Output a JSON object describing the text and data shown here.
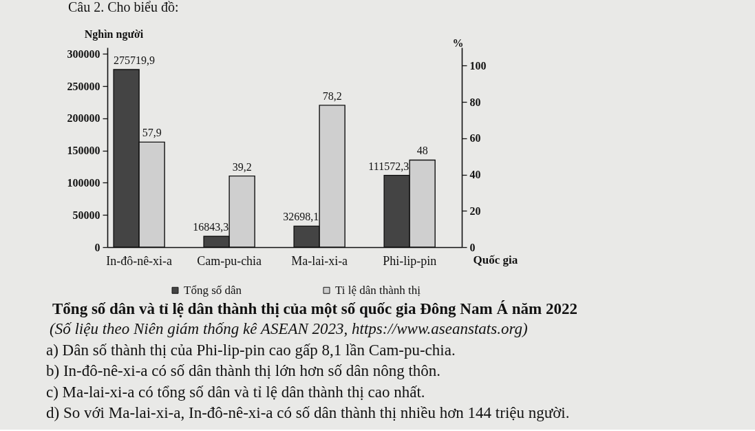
{
  "chart_data": {
    "type": "bar",
    "title": "Tổng số dân và tỉ lệ dân thành thị của một số quốc gia Đông Nam Á năm 2022",
    "xlabel": "Quốc gia",
    "ylabel": "Nghìn người",
    "y2label": "%",
    "categories": [
      "In-đô-nê-xi-a",
      "Cam-pu-chia",
      "Ma-lai-xi-a",
      "Phi-lip-pin"
    ],
    "series": [
      {
        "name": "Tổng số dân",
        "color": "#444444",
        "values": [
          275719.9,
          16843.3,
          32698.1,
          111572.3
        ],
        "value_labels": [
          "275719,9",
          "16843,3",
          "32698,1",
          "111572,3"
        ]
      },
      {
        "name": "Ti lệ dân thành thị",
        "color": "#cfcfcf",
        "axis": "y2",
        "values": [
          57.9,
          39.2,
          78.2,
          48
        ],
        "value_labels": [
          "57,9",
          "39,2",
          "78,2",
          "48"
        ]
      }
    ],
    "ylim": [
      0,
      310000
    ],
    "yticks": [
      0,
      50000,
      100000,
      150000,
      200000,
      250000,
      300000
    ],
    "y2lim": [
      0,
      110
    ],
    "y2ticks": [
      0,
      20,
      40,
      60,
      80,
      100
    ],
    "legend": "bottom",
    "annotations": [
      "Câu 2. Cho biểu đồ:",
      "(Số liệu theo Niên giám thống kê ASEAN 2023, https://www.aseanstats.org)",
      "a) Dân số thành thị của Phi-lip-pin cao gấp 8,1 lần Cam-pu-chia.",
      "b) In-đô-nê-xi-a có số dân thành thị lớn hơn số dân nông thôn.",
      "c) Ma-lai-xi-a có tổng số dân và tỉ lệ dân thành thị cao nhất.",
      "d) So với Ma-lai-xi-a, In-đô-nê-xi-a có số dân thành thị nhiều hơn 144 triệu người."
    ]
  }
}
